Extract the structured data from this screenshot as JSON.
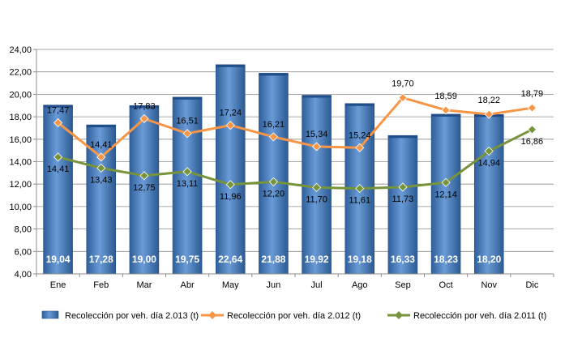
{
  "chart_data": {
    "type": "bar+line",
    "categories": [
      "Ene",
      "Feb",
      "Mar",
      "Abr",
      "May",
      "Jun",
      "Jul",
      "Ago",
      "Sep",
      "Oct",
      "Nov",
      "Dic"
    ],
    "ylim": [
      4,
      24
    ],
    "yticks": [
      "4,00",
      "6,00",
      "8,00",
      "10,00",
      "12,00",
      "14,00",
      "16,00",
      "18,00",
      "20,00",
      "22,00",
      "24,00"
    ],
    "grid": true,
    "legend_position": "bottom",
    "series": [
      {
        "name": "Recolección por veh. día 2.013 (t)",
        "kind": "bar",
        "color": "#4F81BD",
        "values": [
          19.04,
          17.28,
          19.0,
          19.75,
          22.64,
          21.88,
          19.92,
          19.18,
          16.33,
          18.23,
          18.2,
          null
        ],
        "labels": [
          "19,04",
          "17,28",
          "19,00",
          "19,75",
          "22,64",
          "21,88",
          "19,92",
          "19,18",
          "16,33",
          "18,23",
          "18,20",
          ""
        ]
      },
      {
        "name": "Recolección por veh. día 2.012 (t)",
        "kind": "line",
        "color": "#F79646",
        "values": [
          17.47,
          14.41,
          17.83,
          16.51,
          17.24,
          16.21,
          15.34,
          15.24,
          19.7,
          18.59,
          18.22,
          18.79
        ],
        "labels": [
          "17,47",
          "14,41",
          "17,83",
          "16,51",
          "17,24",
          "16,21",
          "15,34",
          "15,24",
          "19,70",
          "18,59",
          "18,22",
          "18,79"
        ]
      },
      {
        "name": "Recolección por veh. día 2.011 (t)",
        "kind": "line",
        "color": "#77933C",
        "values": [
          14.41,
          13.43,
          12.75,
          13.11,
          11.96,
          12.2,
          11.7,
          11.61,
          11.73,
          12.14,
          14.94,
          16.86
        ],
        "labels": [
          "14,41",
          "13,43",
          "12,75",
          "13,11",
          "11,96",
          "12,20",
          "11,70",
          "11,61",
          "11,73",
          "12,14",
          "14,94",
          "16,86"
        ]
      }
    ]
  }
}
